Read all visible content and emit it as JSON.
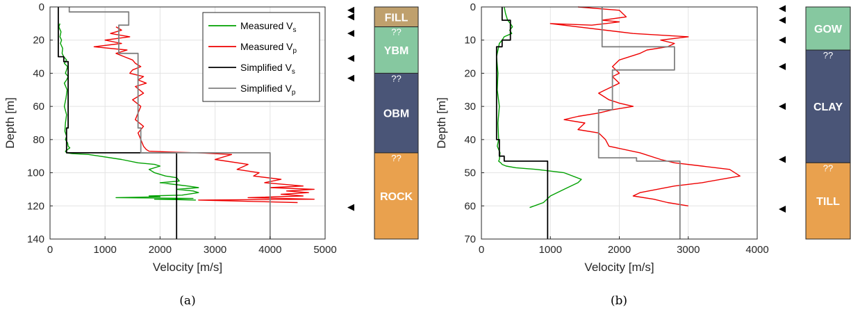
{
  "colors": {
    "measured_vs": "#00a000",
    "measured_vp": "#ee0000",
    "simplified_vs": "#000000",
    "simplified_vp": "#808080",
    "fill": "#bfa06d",
    "ybm": "#86c8a0",
    "obm": "#4a5577",
    "rock": "#e9a14e",
    "gow": "#86c8a0",
    "clay": "#4a5577",
    "till": "#e9a14e"
  },
  "chart_data": [
    {
      "type": "line",
      "caption": "(a)",
      "xlabel": "Velocity [m/s]",
      "ylabel": "Depth [m]",
      "xlim": [
        0,
        5000
      ],
      "ylim": [
        0,
        140
      ],
      "y_reversed": true,
      "xticks": [
        0,
        1000,
        2000,
        3000,
        4000,
        5000
      ],
      "yticks": [
        0,
        20,
        40,
        60,
        80,
        100,
        120,
        140
      ],
      "grid": true,
      "legend": {
        "position": "top-right",
        "entries": [
          {
            "series": "measured_vs",
            "name": "Measured V",
            "sub": "s"
          },
          {
            "series": "measured_vp",
            "name": "Measured V",
            "sub": "p"
          },
          {
            "series": "simplified_vs",
            "name": "Simplified V",
            "sub": "s"
          },
          {
            "series": "simplified_vp",
            "name": "Simplified V",
            "sub": "p"
          }
        ]
      },
      "series": [
        {
          "id": "measured_vs",
          "x": [
            180,
            160,
            200,
            180,
            210,
            190,
            230,
            220,
            250,
            300,
            260,
            320,
            300,
            280,
            330,
            300,
            260,
            310,
            290,
            260,
            300,
            280,
            270,
            300,
            280,
            320,
            330,
            360,
            320,
            280,
            300,
            400,
            700,
            900,
            1300,
            1600,
            1900,
            2000,
            1800,
            1900,
            2100,
            2300,
            2350,
            2000,
            2500,
            2700,
            2300,
            2600,
            2700,
            2500,
            2400,
            1800,
            2000,
            1200,
            2600,
            1900,
            2650
          ],
          "y": [
            10,
            12,
            15,
            18,
            20,
            22,
            25,
            28,
            30,
            32,
            34,
            36,
            38,
            40,
            42,
            44,
            46,
            50,
            55,
            60,
            65,
            70,
            75,
            78,
            80,
            82,
            84,
            85,
            86,
            87,
            88,
            88.5,
            89,
            90,
            92,
            94,
            95,
            96,
            98,
            100,
            102,
            103,
            105,
            106,
            108,
            109,
            110,
            111,
            112,
            113,
            113.5,
            114,
            114.5,
            115,
            115.5,
            116,
            116.5
          ]
        },
        {
          "id": "measured_vp",
          "x": [
            1200,
            1300,
            1100,
            1450,
            1000,
            1300,
            800,
            1400,
            1200,
            1350,
            1500,
            1550,
            1650,
            1500,
            1450,
            1700,
            1600,
            1750,
            1550,
            1700,
            1500,
            1650,
            1600,
            1550,
            1700,
            1600,
            1650,
            1700,
            1750,
            1800,
            2200,
            2700,
            3300,
            3000,
            3600,
            3400,
            3800,
            3700,
            4200,
            3900,
            4600,
            4000,
            4800,
            4300,
            4700,
            4200,
            4600,
            3600,
            4800,
            2700,
            4500
          ],
          "y": [
            12,
            14,
            16,
            18,
            20,
            22,
            24,
            26,
            28,
            30,
            32,
            34,
            36,
            38,
            40,
            42,
            44,
            46,
            48,
            52,
            56,
            60,
            64,
            68,
            72,
            76,
            80,
            84,
            86,
            87,
            87.5,
            88,
            89,
            92,
            95,
            98,
            100,
            102,
            104,
            106,
            108,
            109,
            110,
            111,
            112,
            113,
            114,
            115,
            116,
            116.5,
            118
          ]
        },
        {
          "id": "simplified_vs",
          "x": [
            150,
            150,
            250,
            250,
            330,
            330,
            300,
            300,
            350,
            350,
            2300,
            2300
          ],
          "y": [
            0,
            30,
            30,
            33,
            33,
            73,
            73,
            88,
            88,
            88,
            88,
            140
          ]
        },
        {
          "id": "simplified_vp",
          "x": [
            350,
            350,
            1430,
            1430,
            1250,
            1250,
            1600,
            1600,
            1650,
            1650,
            4000,
            4000
          ],
          "y": [
            0,
            3,
            3,
            11,
            11,
            28,
            28,
            73,
            73,
            88,
            88,
            140
          ]
        }
      ],
      "layers": [
        {
          "label": "FILL",
          "top": 0,
          "bottom": 12,
          "color": "fill",
          "qq": false
        },
        {
          "label": "YBM",
          "top": 12,
          "bottom": 40,
          "color": "ybm",
          "qq": true
        },
        {
          "label": "OBM",
          "top": 40,
          "bottom": 88,
          "color": "obm",
          "qq": true
        },
        {
          "label": "ROCK",
          "top": 88,
          "bottom": 140,
          "color": "rock",
          "qq": true
        }
      ],
      "markers": [
        2,
        6,
        16,
        31,
        43,
        121
      ]
    },
    {
      "type": "line",
      "caption": "(b)",
      "xlabel": "Velocity [m/s]",
      "ylabel": "Depth [m]",
      "xlim": [
        0,
        4000
      ],
      "ylim": [
        0,
        70
      ],
      "y_reversed": true,
      "xticks": [
        0,
        1000,
        2000,
        3000,
        4000
      ],
      "yticks": [
        0,
        10,
        20,
        30,
        40,
        50,
        60,
        70
      ],
      "grid": true,
      "series": [
        {
          "id": "measured_vs",
          "x": [
            330,
            350,
            380,
            420,
            450,
            410,
            440,
            330,
            300,
            260,
            250,
            220,
            240,
            230,
            260,
            240,
            250,
            230,
            270,
            260,
            250,
            280,
            300,
            360,
            500,
            800,
            1200,
            1450,
            1400,
            1200,
            1000,
            950,
            900,
            700
          ],
          "y": [
            0,
            2,
            4,
            5,
            6,
            7,
            8,
            9,
            10,
            11,
            12,
            15,
            20,
            25,
            30,
            35,
            40,
            42,
            44,
            46,
            46.5,
            47,
            47.5,
            48,
            48.5,
            49,
            50,
            52,
            53,
            55,
            57,
            58,
            59,
            60.5
          ]
        },
        {
          "id": "measured_vp",
          "x": [
            1400,
            2000,
            2100,
            1750,
            2000,
            1800,
            1600,
            1000,
            2200,
            3000,
            2600,
            2800,
            2700,
            2400,
            2300,
            2000,
            1900,
            2000,
            1900,
            2000,
            1800,
            1700,
            1850,
            2000,
            2200,
            1900,
            1700,
            1400,
            1200,
            1500,
            1400,
            1700,
            1800,
            1850,
            2300,
            2600,
            2800,
            3200,
            3600,
            3750,
            3200,
            2800,
            2300,
            2200,
            2500,
            2700,
            3000
          ],
          "y": [
            0,
            1,
            3,
            4,
            4.5,
            5,
            5.5,
            5,
            8,
            9,
            10,
            11,
            12,
            13,
            14,
            16,
            18,
            20,
            21,
            23,
            25,
            26,
            28,
            29,
            30,
            31,
            32,
            33,
            34,
            35,
            37,
            38,
            40,
            42,
            44,
            46,
            47,
            48,
            49,
            51,
            53,
            54,
            56,
            57,
            58,
            59,
            60
          ]
        },
        {
          "id": "simplified_vs",
          "x": [
            300,
            300,
            420,
            420,
            300,
            300,
            220,
            220,
            260,
            260,
            330,
            330,
            960,
            960
          ],
          "y": [
            0,
            4,
            4,
            10,
            10,
            12,
            12,
            40,
            40,
            45,
            45,
            46.5,
            46.5,
            70
          ]
        },
        {
          "id": "simplified_vp",
          "x": [
            1750,
            1750,
            2800,
            2800,
            1900,
            1900,
            1700,
            1700,
            2250,
            2250,
            2880,
            2880
          ],
          "y": [
            0,
            12,
            12,
            19,
            19,
            31,
            31,
            45.5,
            45.5,
            46.5,
            46.5,
            70
          ]
        }
      ],
      "layers": [
        {
          "label": "GOW",
          "top": 0,
          "bottom": 13,
          "color": "gow",
          "qq": false
        },
        {
          "label": "CLAY",
          "top": 13,
          "bottom": 47,
          "color": "clay",
          "qq": true
        },
        {
          "label": "TILL",
          "top": 47,
          "bottom": 70,
          "color": "till",
          "qq": true
        }
      ],
      "markers": [
        0.5,
        4,
        10,
        18,
        30,
        46,
        61
      ]
    }
  ],
  "qq_label": "??"
}
